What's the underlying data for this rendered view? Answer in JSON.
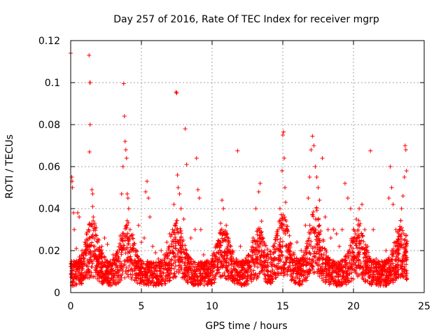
{
  "chart_data": {
    "type": "scatter",
    "title": "Day 257 of 2016, Rate Of TEC Index for receiver mgrp",
    "xlabel": "GPS time / hours",
    "ylabel": "ROTI / TECUs",
    "xlim": [
      0,
      25
    ],
    "ylim": [
      0,
      0.12
    ],
    "x_ticks": [
      0,
      5,
      10,
      15,
      20,
      25
    ],
    "x_tick_labels": [
      "0",
      "5",
      "10",
      "15",
      "20",
      "25"
    ],
    "y_ticks": [
      0,
      0.02,
      0.04,
      0.06,
      0.08,
      0.1,
      0.12
    ],
    "y_tick_labels": [
      "0",
      "0.02",
      "0.04",
      "0.06",
      "0.08",
      "0.1",
      "0.12"
    ],
    "grid": true,
    "marker": "plus",
    "marker_color": "#ff0000",
    "series": [
      {
        "name": "ROTI",
        "points": [
          [
            0.0,
            0.114
          ],
          [
            0.08,
            0.055
          ],
          [
            0.1,
            0.053
          ],
          [
            0.12,
            0.05
          ],
          [
            0.2,
            0.038
          ],
          [
            0.25,
            0.03
          ],
          [
            0.4,
            0.021
          ],
          [
            0.5,
            0.038
          ],
          [
            0.6,
            0.036
          ],
          [
            0.8,
            0.02
          ],
          [
            1.0,
            0.024
          ],
          [
            1.1,
            0.022
          ],
          [
            1.3,
            0.113
          ],
          [
            1.35,
            0.1
          ],
          [
            1.38,
            0.1
          ],
          [
            1.37,
            0.08
          ],
          [
            1.33,
            0.067
          ],
          [
            1.5,
            0.049
          ],
          [
            1.55,
            0.047
          ],
          [
            1.55,
            0.041
          ],
          [
            1.6,
            0.036
          ],
          [
            1.7,
            0.033
          ],
          [
            1.8,
            0.031
          ],
          [
            2.0,
            0.025
          ],
          [
            2.2,
            0.022
          ],
          [
            2.4,
            0.026
          ],
          [
            2.6,
            0.023
          ],
          [
            2.8,
            0.015
          ],
          [
            3.0,
            0.018
          ],
          [
            3.2,
            0.012
          ],
          [
            3.5,
            0.027
          ],
          [
            3.6,
            0.047
          ],
          [
            3.7,
            0.06
          ],
          [
            3.75,
            0.0995
          ],
          [
            3.8,
            0.084
          ],
          [
            3.85,
            0.072
          ],
          [
            3.9,
            0.068
          ],
          [
            3.95,
            0.064
          ],
          [
            4.0,
            0.047
          ],
          [
            4.05,
            0.045
          ],
          [
            4.1,
            0.04
          ],
          [
            4.2,
            0.03
          ],
          [
            4.4,
            0.021
          ],
          [
            4.6,
            0.018
          ],
          [
            4.8,
            0.032
          ],
          [
            5.0,
            0.024
          ],
          [
            5.2,
            0.026
          ],
          [
            5.3,
            0.048
          ],
          [
            5.4,
            0.053
          ],
          [
            5.5,
            0.045
          ],
          [
            5.6,
            0.036
          ],
          [
            5.8,
            0.022
          ],
          [
            6.0,
            0.019
          ],
          [
            6.2,
            0.016
          ],
          [
            6.4,
            0.02
          ],
          [
            6.6,
            0.018
          ],
          [
            6.8,
            0.024
          ],
          [
            7.0,
            0.028
          ],
          [
            7.2,
            0.03
          ],
          [
            7.3,
            0.042
          ],
          [
            7.45,
            0.0955
          ],
          [
            7.5,
            0.095
          ],
          [
            7.55,
            0.056
          ],
          [
            7.6,
            0.05
          ],
          [
            7.7,
            0.047
          ],
          [
            7.8,
            0.04
          ],
          [
            8.0,
            0.035
          ],
          [
            8.1,
            0.078
          ],
          [
            8.2,
            0.061
          ],
          [
            8.5,
            0.026
          ],
          [
            8.8,
            0.03
          ],
          [
            8.9,
            0.064
          ],
          [
            9.0,
            0.049
          ],
          [
            9.1,
            0.045
          ],
          [
            9.2,
            0.03
          ],
          [
            9.4,
            0.018
          ],
          [
            9.6,
            0.015
          ],
          [
            9.8,
            0.012
          ],
          [
            10.0,
            0.016
          ],
          [
            10.3,
            0.022
          ],
          [
            10.6,
            0.033
          ],
          [
            10.7,
            0.044
          ],
          [
            10.8,
            0.04
          ],
          [
            11.0,
            0.032
          ],
          [
            11.2,
            0.02
          ],
          [
            11.5,
            0.016
          ],
          [
            11.8,
            0.0675
          ],
          [
            12.0,
            0.022
          ],
          [
            12.3,
            0.014
          ],
          [
            12.6,
            0.018
          ],
          [
            12.9,
            0.026
          ],
          [
            13.1,
            0.04
          ],
          [
            13.3,
            0.048
          ],
          [
            13.4,
            0.052
          ],
          [
            13.5,
            0.034
          ],
          [
            13.7,
            0.02
          ],
          [
            14.0,
            0.016
          ],
          [
            14.3,
            0.022
          ],
          [
            14.6,
            0.028
          ],
          [
            14.8,
            0.04
          ],
          [
            14.95,
            0.058
          ],
          [
            15.0,
            0.075
          ],
          [
            15.05,
            0.0765
          ],
          [
            15.1,
            0.064
          ],
          [
            15.15,
            0.05
          ],
          [
            15.2,
            0.043
          ],
          [
            15.3,
            0.03
          ],
          [
            15.5,
            0.02
          ],
          [
            15.8,
            0.018
          ],
          [
            16.0,
            0.024
          ],
          [
            16.3,
            0.02
          ],
          [
            16.6,
            0.032
          ],
          [
            16.8,
            0.045
          ],
          [
            16.9,
            0.055
          ],
          [
            17.0,
            0.068
          ],
          [
            17.1,
            0.0745
          ],
          [
            17.2,
            0.07
          ],
          [
            17.3,
            0.06
          ],
          [
            17.4,
            0.055
          ],
          [
            17.5,
            0.05
          ],
          [
            17.6,
            0.044
          ],
          [
            17.8,
            0.064
          ],
          [
            18.0,
            0.036
          ],
          [
            18.2,
            0.03
          ],
          [
            18.4,
            0.026
          ],
          [
            18.6,
            0.03
          ],
          [
            18.8,
            0.028
          ],
          [
            19.0,
            0.022
          ],
          [
            19.2,
            0.03
          ],
          [
            19.4,
            0.052
          ],
          [
            19.6,
            0.045
          ],
          [
            19.8,
            0.04
          ],
          [
            20.0,
            0.03
          ],
          [
            20.2,
            0.035
          ],
          [
            20.4,
            0.04
          ],
          [
            20.6,
            0.042
          ],
          [
            20.8,
            0.03
          ],
          [
            21.0,
            0.022
          ],
          [
            21.2,
            0.0675
          ],
          [
            21.4,
            0.03
          ],
          [
            21.6,
            0.016
          ],
          [
            21.8,
            0.012
          ],
          [
            22.0,
            0.015
          ],
          [
            22.3,
            0.02
          ],
          [
            22.5,
            0.045
          ],
          [
            22.6,
            0.06
          ],
          [
            22.7,
            0.05
          ],
          [
            22.8,
            0.042
          ],
          [
            23.0,
            0.03
          ],
          [
            23.2,
            0.028
          ],
          [
            23.4,
            0.04
          ],
          [
            23.5,
            0.046
          ],
          [
            23.6,
            0.055
          ],
          [
            23.65,
            0.07
          ],
          [
            23.7,
            0.068
          ],
          [
            23.75,
            0.058
          ]
        ]
      }
    ]
  }
}
